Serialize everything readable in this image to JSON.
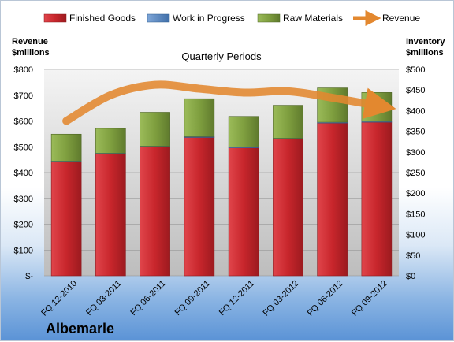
{
  "chart_data": {
    "type": "bar",
    "title": "Quarterly Periods",
    "brand": "Albemarle",
    "left_axis_title_line1": "Revenue",
    "left_axis_title_line2": "$millions",
    "right_axis_title_line1": "Inventory",
    "right_axis_title_line2": "$millions",
    "categories": [
      "FQ 12-2010",
      "FQ 03-2011",
      "FQ 06-2011",
      "FQ 09-2011",
      "FQ 12-2011",
      "FQ 03-2012",
      "FQ 06-2012",
      "FQ 09-2012"
    ],
    "left_ylim": [
      0,
      800
    ],
    "right_ylim": [
      0,
      500
    ],
    "left_ticks": [
      "$-",
      "$100",
      "$200",
      "$300",
      "$400",
      "$500",
      "$600",
      "$700",
      "$800"
    ],
    "right_ticks": [
      "$0",
      "$50",
      "$100",
      "$150",
      "$200",
      "$250",
      "$300",
      "$350",
      "$400",
      "$450",
      "$500"
    ],
    "grid": true,
    "legend_placement": "top",
    "series": [
      {
        "name": "Finished Goods",
        "axis": "right",
        "kind": "stacked-bar",
        "color": "#c0272d",
        "values": [
          276,
          295,
          312,
          335,
          310,
          331,
          370,
          372
        ]
      },
      {
        "name": "Work in Progress",
        "axis": "right",
        "kind": "stacked-bar",
        "color": "#4f81bd",
        "values": [
          2,
          2,
          2,
          2,
          2,
          2,
          2,
          2
        ]
      },
      {
        "name": "Raw Materials",
        "axis": "right",
        "kind": "stacked-bar",
        "color": "#7a9a3a",
        "values": [
          65,
          60,
          82,
          92,
          74,
          80,
          83,
          70
        ]
      },
      {
        "name": "Revenue",
        "axis": "left",
        "kind": "line",
        "color": "#e3882f",
        "values": [
          600,
          700,
          740,
          725,
          710,
          715,
          690,
          660
        ]
      }
    ]
  }
}
